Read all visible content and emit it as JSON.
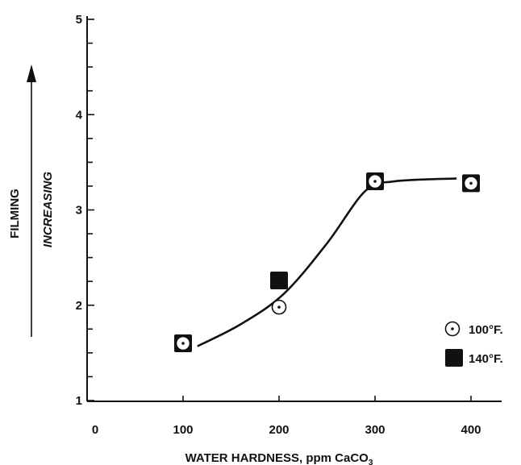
{
  "chart_data": {
    "type": "scatter",
    "xlabel": "WATER HARDNESS, ppm CaCO",
    "xlabel_subscript": "3",
    "ylabel_line1": "FILMING",
    "ylabel_line2": "INCREASING",
    "xlim": [
      0,
      450
    ],
    "ylim": [
      1,
      5
    ],
    "x_ticks": [
      0,
      100,
      200,
      300,
      400
    ],
    "y_ticks": [
      1,
      2,
      3,
      4,
      5
    ],
    "y_minor_step": 0.25,
    "grid": false,
    "legend_position": "right",
    "series": [
      {
        "name": "100°F.",
        "marker": "circle-dot",
        "points": [
          {
            "x": 100,
            "y": 1.6
          },
          {
            "x": 200,
            "y": 1.98
          },
          {
            "x": 300,
            "y": 3.3
          },
          {
            "x": 400,
            "y": 3.28
          }
        ]
      },
      {
        "name": "140°F.",
        "marker": "filled-square",
        "points": [
          {
            "x": 100,
            "y": 1.6
          },
          {
            "x": 200,
            "y": 2.26
          },
          {
            "x": 300,
            "y": 3.3
          },
          {
            "x": 400,
            "y": 3.28
          }
        ]
      }
    ],
    "trend_curve": [
      {
        "x": 115,
        "y": 1.57
      },
      {
        "x": 160,
        "y": 1.8
      },
      {
        "x": 205,
        "y": 2.12
      },
      {
        "x": 250,
        "y": 2.65
      },
      {
        "x": 290,
        "y": 3.2
      },
      {
        "x": 320,
        "y": 3.3
      },
      {
        "x": 385,
        "y": 3.33
      }
    ]
  }
}
